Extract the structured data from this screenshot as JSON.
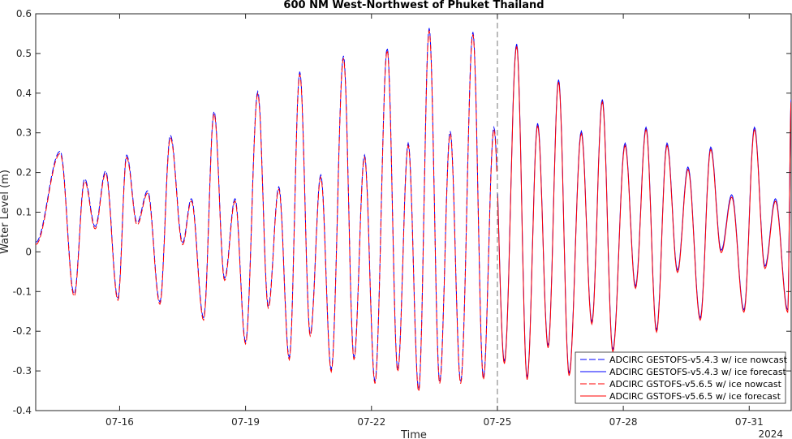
{
  "chart_data": {
    "type": "line",
    "title": "600 NM West-Northwest of Phuket Thailand",
    "xlabel": "Time",
    "ylabel": "Water Level (m)",
    "year_label": "2024",
    "ylim": [
      -0.4,
      0.6
    ],
    "xlim": [
      "2024-07-14",
      "2024-08-01"
    ],
    "grid": false,
    "legend_position": "bottom-right",
    "x_ticks": [
      "07-16",
      "07-19",
      "07-22",
      "07-25",
      "07-28",
      "07-31"
    ],
    "y_ticks": [
      "-0.4",
      "-0.3",
      "-0.2",
      "-0.1",
      "0",
      "0.1",
      "0.2",
      "0.3",
      "0.4",
      "0.5",
      "0.6"
    ],
    "nowcast_forecast_divider": "2024-07-25",
    "series": [
      {
        "name": "ADCIRC GESTOFS-v5.4.3 w/ ice nowcast",
        "color": "#0000ff",
        "style": "dashed",
        "period": "nowcast"
      },
      {
        "name": "ADCIRC GESTOFS-v5.4.3 w/ ice forecast",
        "color": "#0000ff",
        "style": "solid",
        "period": "forecast"
      },
      {
        "name": "ADCIRC GSTOFS-v5.6.5 w/ ice nowcast",
        "color": "#ff0000",
        "style": "dashed",
        "period": "nowcast"
      },
      {
        "name": "ADCIRC GSTOFS-v5.6.5 w/ ice forecast",
        "color": "#ff0000",
        "style": "solid",
        "period": "forecast"
      }
    ],
    "extrema": [
      [
        "2024-07-14",
        0.02
      ],
      [
        "2024-07-14 14:00",
        0.25
      ],
      [
        "2024-07-14 22:00",
        -0.11
      ],
      [
        "2024-07-15 04:00",
        0.18
      ],
      [
        "2024-07-15 10:00",
        0.06
      ],
      [
        "2024-07-15 16:00",
        0.2
      ],
      [
        "2024-07-15 23:00",
        -0.12
      ],
      [
        "2024-07-16 04:00",
        0.24
      ],
      [
        "2024-07-16 10:00",
        0.07
      ],
      [
        "2024-07-16 16:00",
        0.15
      ],
      [
        "2024-07-16 23:00",
        -0.13
      ],
      [
        "2024-07-17 05:00",
        0.29
      ],
      [
        "2024-07-17 12:00",
        0.02
      ],
      [
        "2024-07-17 17:00",
        0.13
      ],
      [
        "2024-07-18 00:00",
        -0.17
      ],
      [
        "2024-07-18 06:00",
        0.35
      ],
      [
        "2024-07-18 12:00",
        -0.07
      ],
      [
        "2024-07-18 18:00",
        0.13
      ],
      [
        "2024-07-19 00:00",
        -0.23
      ],
      [
        "2024-07-19 07:00",
        0.4
      ],
      [
        "2024-07-19 13:00",
        -0.14
      ],
      [
        "2024-07-19 19:00",
        0.16
      ],
      [
        "2024-07-20 01:00",
        -0.27
      ],
      [
        "2024-07-20 07:00",
        0.45
      ],
      [
        "2024-07-20 13:00",
        -0.21
      ],
      [
        "2024-07-20 19:00",
        0.19
      ],
      [
        "2024-07-21 01:00",
        -0.3
      ],
      [
        "2024-07-21 08:00",
        0.49
      ],
      [
        "2024-07-21 14:00",
        -0.27
      ],
      [
        "2024-07-21 20:00",
        0.24
      ],
      [
        "2024-07-22 02:00",
        -0.33
      ],
      [
        "2024-07-22 09:00",
        0.51
      ],
      [
        "2024-07-22 15:00",
        -0.3
      ],
      [
        "2024-07-22 21:00",
        0.27
      ],
      [
        "2024-07-23 03:00",
        -0.35
      ],
      [
        "2024-07-23 09:00",
        0.56
      ],
      [
        "2024-07-23 15:00",
        -0.33
      ],
      [
        "2024-07-23 21:00",
        0.3
      ],
      [
        "2024-07-24 03:00",
        -0.33
      ],
      [
        "2024-07-24 10:00",
        0.55
      ],
      [
        "2024-07-24 16:00",
        -0.32
      ],
      [
        "2024-07-24 22:00",
        0.31
      ],
      [
        "2024-07-25 04:00",
        -0.28
      ],
      [
        "2024-07-25 11:00",
        0.52
      ],
      [
        "2024-07-25 17:00",
        -0.32
      ],
      [
        "2024-07-25 23:00",
        0.32
      ],
      [
        "2024-07-26 05:00",
        -0.24
      ],
      [
        "2024-07-26 11:00",
        0.43
      ],
      [
        "2024-07-26 17:00",
        -0.31
      ],
      [
        "2024-07-27 00:00",
        0.3
      ],
      [
        "2024-07-27 06:00",
        -0.18
      ],
      [
        "2024-07-27 12:00",
        0.38
      ],
      [
        "2024-07-27 18:00",
        -0.25
      ],
      [
        "2024-07-28 01:00",
        0.27
      ],
      [
        "2024-07-28 07:00",
        -0.09
      ],
      [
        "2024-07-28 13:00",
        0.31
      ],
      [
        "2024-07-28 19:00",
        -0.2
      ],
      [
        "2024-07-29 01:00",
        0.27
      ],
      [
        "2024-07-29 07:00",
        -0.05
      ],
      [
        "2024-07-29 13:00",
        0.21
      ],
      [
        "2024-07-29 20:00",
        -0.17
      ],
      [
        "2024-07-30 02:00",
        0.26
      ],
      [
        "2024-07-30 08:00",
        0.0
      ],
      [
        "2024-07-30 14:00",
        0.14
      ],
      [
        "2024-07-30 21:00",
        -0.15
      ],
      [
        "2024-07-31 03:00",
        0.31
      ],
      [
        "2024-07-31 09:00",
        -0.04
      ],
      [
        "2024-07-31 15:00",
        0.13
      ],
      [
        "2024-07-31 22:00",
        -0.15
      ],
      [
        "2024-08-01",
        0.38
      ]
    ]
  }
}
